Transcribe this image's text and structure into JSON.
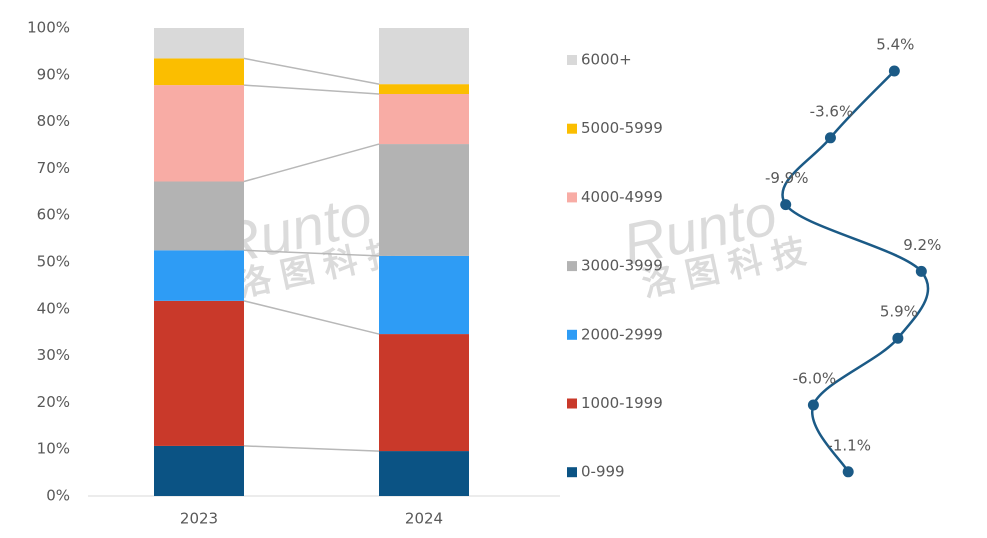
{
  "chart_data": [
    {
      "type": "bar",
      "stacked": true,
      "categories": [
        "2023",
        "2024"
      ],
      "series": [
        {
          "name": "0-999",
          "color": "#0b5384",
          "values": [
            10.7,
            9.6
          ]
        },
        {
          "name": "1000-1999",
          "color": "#c9392a",
          "values": [
            31.0,
            25.0
          ]
        },
        {
          "name": "2000-2999",
          "color": "#2e9cf5",
          "values": [
            10.8,
            16.7
          ]
        },
        {
          "name": "3000-3999",
          "color": "#b3b3b3",
          "values": [
            14.7,
            23.9
          ]
        },
        {
          "name": "4000-4999",
          "color": "#f8aca5",
          "values": [
            20.6,
            10.7
          ]
        },
        {
          "name": "5000-5999",
          "color": "#fbbe00",
          "values": [
            5.7,
            2.1
          ]
        },
        {
          "name": "6000+",
          "color": "#d9d9d9",
          "values": [
            6.5,
            12.0
          ]
        }
      ],
      "ylim": [
        0,
        100
      ],
      "yticks": [
        {
          "value": 0,
          "label": "0%"
        },
        {
          "value": 10,
          "label": "10%"
        },
        {
          "value": 20,
          "label": "20%"
        },
        {
          "value": 30,
          "label": "30%"
        },
        {
          "value": 40,
          "label": "40%"
        },
        {
          "value": 50,
          "label": "50%"
        },
        {
          "value": 60,
          "label": "60%"
        },
        {
          "value": 70,
          "label": "70%"
        },
        {
          "value": 80,
          "label": "80%"
        },
        {
          "value": 90,
          "label": "90%"
        },
        {
          "value": 100,
          "label": "100%"
        }
      ],
      "connectors": true
    },
    {
      "type": "line",
      "orientation": "horizontal",
      "smooth": true,
      "color": "#1b5a86",
      "values": [
        5.4,
        -3.6,
        -9.9,
        9.2,
        5.9,
        -6.0,
        -1.1
      ],
      "value_labels": [
        "5.4%",
        "-3.6%",
        "-9.9%",
        "9.2%",
        "5.9%",
        "-6.0%",
        "-1.1%"
      ]
    }
  ],
  "watermarks": [
    {
      "brand": "Runto",
      "chinese": "洛图科技"
    },
    {
      "brand": "Runto",
      "chinese": "洛图科技"
    }
  ]
}
